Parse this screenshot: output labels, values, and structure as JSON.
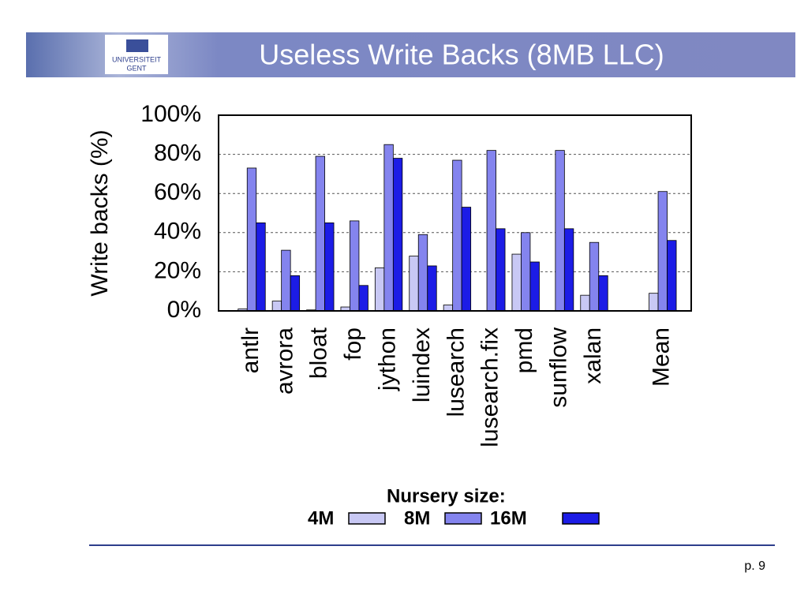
{
  "slide": {
    "logo": [
      "UNIVERSITEIT",
      "GENT"
    ],
    "page": "p. 9"
  },
  "chart_data": {
    "type": "bar",
    "title": "Useless Write Backs (8MB LLC)",
    "y_label": "Write backs (%)",
    "legend_title": "Nursery size:",
    "categories": [
      "antlr",
      "avrora",
      "bloat",
      "fop",
      "jython",
      "luindex",
      "lusearch",
      "lusearch.fix",
      "pmd",
      "sunflow",
      "xalan",
      "Mean"
    ],
    "series": [
      {
        "name": "4M",
        "color": "#c8c8f4",
        "values": [
          1,
          5,
          0.5,
          2,
          22,
          28,
          3,
          0,
          29,
          0,
          8,
          9
        ]
      },
      {
        "name": "8M",
        "color": "#8484ee",
        "values": [
          73,
          31,
          79,
          46,
          85,
          39,
          77,
          82,
          40,
          82,
          35,
          61
        ]
      },
      {
        "name": "16M",
        "color": "#1c1ce6",
        "values": [
          45,
          18,
          45,
          13,
          78,
          23,
          53,
          42,
          25,
          42,
          18,
          36
        ]
      }
    ],
    "ylim": [
      0,
      100
    ],
    "yticks": [
      {
        "value": 0,
        "label": "0%"
      },
      {
        "value": 20,
        "label": "20%"
      },
      {
        "value": 40,
        "label": "40%"
      },
      {
        "value": 60,
        "label": "60%"
      },
      {
        "value": 80,
        "label": "80%"
      },
      {
        "value": 100,
        "label": "100%"
      }
    ],
    "grid": true
  }
}
